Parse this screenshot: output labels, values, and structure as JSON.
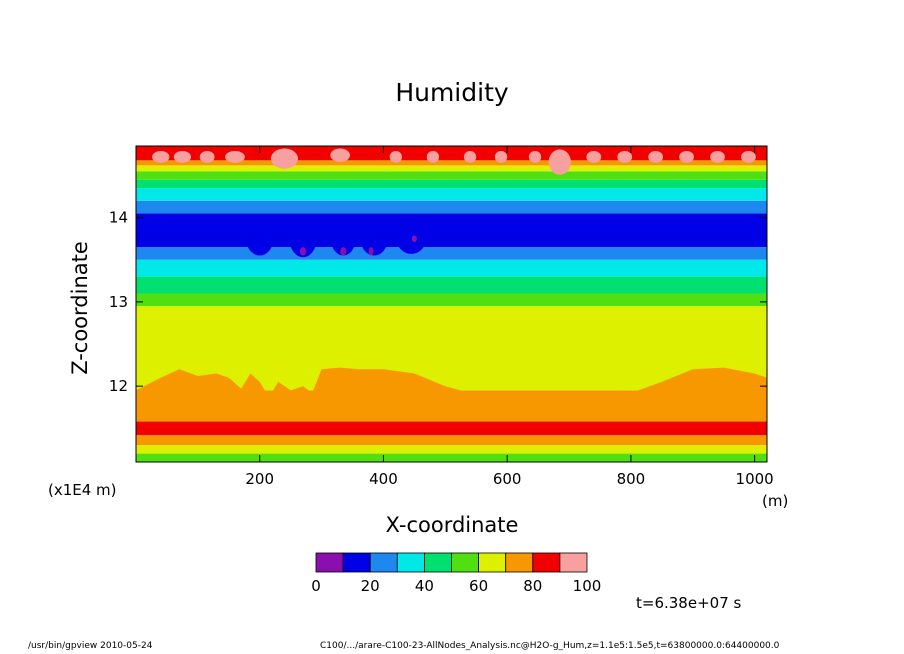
{
  "chart_data": {
    "type": "heatmap",
    "title": "Humidity",
    "xlabel": "X-coordinate",
    "ylabel": "Z-coordinate",
    "x_unit": "(m)",
    "y_scale_note": "(x1E4 m)",
    "xlim": [
      0,
      1020
    ],
    "ylim": [
      11.1,
      14.85
    ],
    "x_ticks": [
      "200",
      "400",
      "600",
      "800",
      "1000"
    ],
    "x_tick_values": [
      200,
      400,
      600,
      800,
      1000
    ],
    "y_ticks": [
      "12",
      "13",
      "14"
    ],
    "y_tick_values": [
      12,
      13,
      14
    ],
    "colorbar": {
      "levels": [
        0,
        10,
        20,
        30,
        40,
        50,
        60,
        70,
        80,
        90,
        100
      ],
      "labels": [
        "0",
        "20",
        "40",
        "60",
        "80",
        "100"
      ],
      "label_values": [
        0,
        20,
        40,
        60,
        80,
        100
      ],
      "colors": [
        "#8a0fae",
        "#0000e6",
        "#1e88f0",
        "#00e8e8",
        "#00e070",
        "#50e012",
        "#dcf000",
        "#f89800",
        "#f20000",
        "#f8a0a0"
      ]
    },
    "bands": [
      {
        "z_bottom": 11.1,
        "z_top": 11.2,
        "value": 55
      },
      {
        "z_bottom": 11.2,
        "z_top": 11.3,
        "value": 65
      },
      {
        "z_bottom": 11.3,
        "z_top": 11.42,
        "value": 75
      },
      {
        "z_bottom": 11.42,
        "z_top": 11.58,
        "value": 85
      },
      {
        "z_bottom": 11.58,
        "z_top": 11.95,
        "value": 75
      },
      {
        "z_bottom": 11.95,
        "z_top": 12.95,
        "value": 65
      },
      {
        "z_bottom": 12.95,
        "z_top": 13.1,
        "value": 55
      },
      {
        "z_bottom": 13.1,
        "z_top": 13.3,
        "value": 45
      },
      {
        "z_bottom": 13.3,
        "z_top": 13.5,
        "value": 35
      },
      {
        "z_bottom": 13.5,
        "z_top": 13.65,
        "value": 25
      },
      {
        "z_bottom": 13.65,
        "z_top": 14.05,
        "value": 15
      },
      {
        "z_bottom": 14.05,
        "z_top": 14.2,
        "value": 25
      },
      {
        "z_bottom": 14.2,
        "z_top": 14.35,
        "value": 35
      },
      {
        "z_bottom": 14.35,
        "z_top": 14.45,
        "value": 45
      },
      {
        "z_bottom": 14.45,
        "z_top": 14.55,
        "value": 55
      },
      {
        "z_bottom": 14.55,
        "z_top": 14.62,
        "value": 65
      },
      {
        "z_bottom": 14.62,
        "z_top": 14.68,
        "value": 75
      },
      {
        "z_bottom": 14.68,
        "z_top": 14.85,
        "value": 85
      }
    ],
    "blobs": [
      {
        "x": 35,
        "z": 13.8,
        "rx": 18,
        "rz": 0.14,
        "value": 15
      },
      {
        "x": 90,
        "z": 13.8,
        "rx": 20,
        "rz": 0.15,
        "value": 15
      },
      {
        "x": 150,
        "z": 13.8,
        "rx": 18,
        "rz": 0.14,
        "value": 15
      },
      {
        "x": 200,
        "z": 13.75,
        "rx": 22,
        "rz": 0.2,
        "value": 15
      },
      {
        "x": 270,
        "z": 13.75,
        "rx": 22,
        "rz": 0.22,
        "value": 15
      },
      {
        "x": 335,
        "z": 13.75,
        "rx": 20,
        "rz": 0.2,
        "value": 15
      },
      {
        "x": 385,
        "z": 13.75,
        "rx": 22,
        "rz": 0.2,
        "value": 15
      },
      {
        "x": 445,
        "z": 13.75,
        "rx": 24,
        "rz": 0.18,
        "value": 15
      },
      {
        "x": 505,
        "z": 13.78,
        "rx": 12,
        "rz": 0.08,
        "value": 15
      },
      {
        "x": 545,
        "z": 13.78,
        "rx": 10,
        "rz": 0.07,
        "value": 15
      },
      {
        "x": 610,
        "z": 13.78,
        "rx": 10,
        "rz": 0.07,
        "value": 15
      },
      {
        "x": 650,
        "z": 13.78,
        "rx": 10,
        "rz": 0.07,
        "value": 15
      },
      {
        "x": 745,
        "z": 13.8,
        "rx": 9,
        "rz": 0.1,
        "value": 15
      },
      {
        "x": 800,
        "z": 13.8,
        "rx": 14,
        "rz": 0.12,
        "value": 15
      },
      {
        "x": 860,
        "z": 13.8,
        "rx": 16,
        "rz": 0.13,
        "value": 15
      },
      {
        "x": 930,
        "z": 13.8,
        "rx": 16,
        "rz": 0.13,
        "value": 15
      },
      {
        "x": 990,
        "z": 13.8,
        "rx": 12,
        "rz": 0.12,
        "value": 15
      },
      {
        "x": 270,
        "z": 13.6,
        "rx": 5,
        "rz": 0.05,
        "value": 5
      },
      {
        "x": 335,
        "z": 13.6,
        "rx": 5,
        "rz": 0.05,
        "value": 5
      },
      {
        "x": 380,
        "z": 13.6,
        "rx": 4,
        "rz": 0.05,
        "value": 5
      },
      {
        "x": 450,
        "z": 13.75,
        "rx": 4,
        "rz": 0.04,
        "value": 5
      },
      {
        "x": 40,
        "z": 14.72,
        "rx": 14,
        "rz": 0.07,
        "value": 95
      },
      {
        "x": 75,
        "z": 14.72,
        "rx": 14,
        "rz": 0.07,
        "value": 95
      },
      {
        "x": 115,
        "z": 14.72,
        "rx": 12,
        "rz": 0.07,
        "value": 95
      },
      {
        "x": 160,
        "z": 14.72,
        "rx": 16,
        "rz": 0.07,
        "value": 95
      },
      {
        "x": 240,
        "z": 14.7,
        "rx": 22,
        "rz": 0.12,
        "value": 95
      },
      {
        "x": 330,
        "z": 14.74,
        "rx": 16,
        "rz": 0.08,
        "value": 95
      },
      {
        "x": 420,
        "z": 14.72,
        "rx": 10,
        "rz": 0.07,
        "value": 95
      },
      {
        "x": 480,
        "z": 14.72,
        "rx": 10,
        "rz": 0.07,
        "value": 95
      },
      {
        "x": 540,
        "z": 14.72,
        "rx": 10,
        "rz": 0.07,
        "value": 95
      },
      {
        "x": 590,
        "z": 14.72,
        "rx": 10,
        "rz": 0.07,
        "value": 95
      },
      {
        "x": 645,
        "z": 14.72,
        "rx": 10,
        "rz": 0.07,
        "value": 95
      },
      {
        "x": 685,
        "z": 14.66,
        "rx": 18,
        "rz": 0.15,
        "value": 95
      },
      {
        "x": 740,
        "z": 14.72,
        "rx": 12,
        "rz": 0.07,
        "value": 95
      },
      {
        "x": 790,
        "z": 14.72,
        "rx": 12,
        "rz": 0.07,
        "value": 95
      },
      {
        "x": 840,
        "z": 14.72,
        "rx": 12,
        "rz": 0.07,
        "value": 95
      },
      {
        "x": 890,
        "z": 14.72,
        "rx": 12,
        "rz": 0.07,
        "value": 95
      },
      {
        "x": 940,
        "z": 14.72,
        "rx": 12,
        "rz": 0.07,
        "value": 95
      },
      {
        "x": 990,
        "z": 14.72,
        "rx": 12,
        "rz": 0.07,
        "value": 95
      }
    ],
    "orange_top_profile": [
      [
        0,
        11.95
      ],
      [
        40,
        12.1
      ],
      [
        70,
        12.2
      ],
      [
        100,
        12.12
      ],
      [
        130,
        12.15
      ],
      [
        150,
        12.1
      ],
      [
        170,
        11.97
      ],
      [
        185,
        12.15
      ],
      [
        200,
        12.05
      ],
      [
        215,
        11.87
      ],
      [
        230,
        12.05
      ],
      [
        250,
        11.95
      ],
      [
        270,
        12.0
      ],
      [
        285,
        11.92
      ],
      [
        300,
        12.2
      ],
      [
        330,
        12.22
      ],
      [
        360,
        12.2
      ],
      [
        400,
        12.2
      ],
      [
        450,
        12.15
      ],
      [
        500,
        12.0
      ],
      [
        550,
        11.9
      ],
      [
        600,
        11.85
      ],
      [
        650,
        11.83
      ],
      [
        700,
        11.83
      ],
      [
        750,
        11.88
      ],
      [
        800,
        11.92
      ],
      [
        850,
        12.05
      ],
      [
        900,
        12.2
      ],
      [
        950,
        12.22
      ],
      [
        1000,
        12.15
      ],
      [
        1020,
        12.1
      ]
    ]
  },
  "axes": {
    "x_unit_label": "(m)",
    "y_scale_label": "(x1E4 m)"
  },
  "time_label": "t=6.38e+07 s",
  "footer": {
    "left": "/usr/bin/gpview  2010-05-24",
    "right": "C100/.../arare-C100-23-AllNodes_Analysis.nc@H2O-g_Hum,z=1.1e5:1.5e5,t=63800000.0:64400000.0"
  }
}
